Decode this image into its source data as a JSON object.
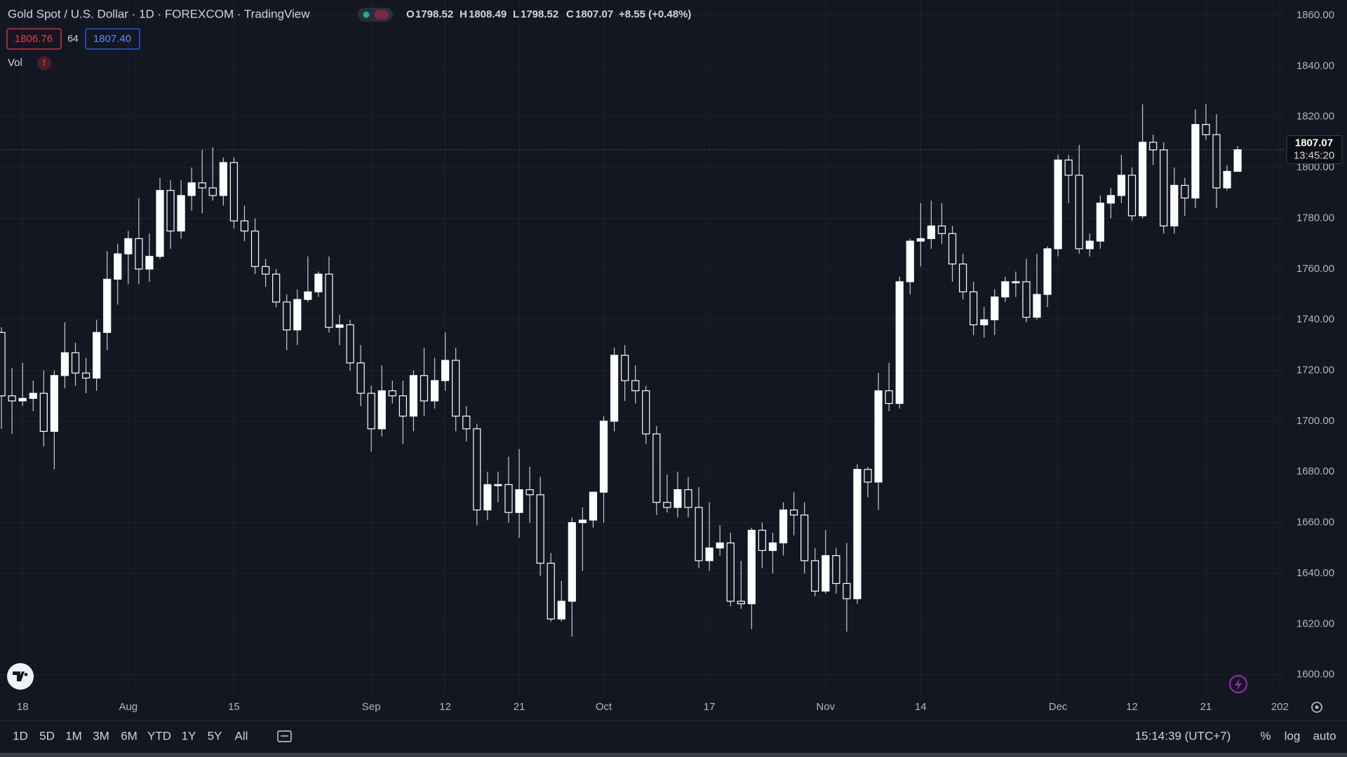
{
  "header": {
    "title": "Gold Spot / U.S. Dollar · 1D · FOREXCOM · TradingView",
    "o_label": "O",
    "h_label": "H",
    "l_label": "L",
    "c_label": "C",
    "change": "+8.55 (+0.48%)",
    "bid": "1806.76",
    "spread": "64",
    "ask": "1807.40",
    "vol_label": "Vol",
    "vol_warning": "!"
  },
  "chart_data": {
    "type": "candlestick",
    "categories": [
      null,
      null,
      "18",
      null,
      null,
      null,
      null,
      null,
      null,
      null,
      null,
      null,
      "Aug",
      null,
      null,
      null,
      null,
      null,
      null,
      null,
      null,
      null,
      "15",
      null,
      null,
      null,
      null,
      null,
      null,
      null,
      null,
      null,
      null,
      null,
      null,
      "Sep",
      null,
      null,
      null,
      null,
      null,
      null,
      "12",
      null,
      null,
      null,
      null,
      null,
      null,
      "21",
      null,
      null,
      null,
      null,
      null,
      null,
      null,
      "Oct",
      null,
      null,
      null,
      null,
      null,
      null,
      null,
      null,
      null,
      "17",
      null,
      null,
      null,
      null,
      null,
      null,
      null,
      null,
      null,
      null,
      "Nov",
      null,
      null,
      null,
      null,
      null,
      null,
      null,
      null,
      "14",
      null,
      null,
      null,
      null,
      null,
      null,
      null,
      null,
      null,
      null,
      null,
      null,
      "Dec",
      null,
      null,
      null,
      null,
      null,
      null,
      "12",
      null,
      null,
      null,
      null,
      null,
      null,
      "21",
      null,
      null,
      null,
      null,
      null,
      null,
      "202"
    ],
    "open": [
      1735,
      1710,
      1708,
      1709,
      1711,
      1696,
      1718,
      1727,
      1719,
      1717,
      1735,
      1756,
      1766,
      1772,
      1760,
      1765,
      1791,
      1775,
      1789,
      1794,
      1792,
      1789,
      1802,
      1779,
      1775,
      1761,
      1758,
      1747,
      1736,
      1748,
      1751,
      1758,
      1737,
      1738,
      1723,
      1711,
      1697,
      1712,
      1710,
      1702,
      1718,
      1708,
      1716,
      1724,
      1702,
      1697,
      1665,
      1675,
      1675,
      1664,
      1673,
      1671,
      1644,
      1622,
      1629,
      1660,
      1661,
      1672,
      1700,
      1726,
      1716,
      1712,
      1695,
      1668,
      1666,
      1673,
      1666,
      1645,
      1650,
      1652,
      1629,
      1628,
      1657,
      1649,
      1652,
      1665,
      1663,
      1645,
      1633,
      1647,
      1636,
      1630,
      1681,
      1676,
      1712,
      1707,
      1755,
      1771,
      1772,
      1777,
      1774,
      1762,
      1751,
      1738,
      1740,
      1749,
      1755,
      1755,
      1741,
      1750,
      1768,
      1803,
      1797,
      1768,
      1771,
      1786,
      1789,
      1797,
      1781,
      1810,
      1807,
      1777,
      1793,
      1788,
      1817,
      1813,
      1792,
      1798.52,
      null,
      null,
      null,
      null
    ],
    "high": [
      1737,
      1721,
      1723,
      1716,
      1720,
      1720,
      1739,
      1731,
      1725,
      1740,
      1767,
      1770,
      1775,
      1788,
      1774,
      1796,
      1795,
      1795,
      1800,
      1807,
      1808,
      1804,
      1804,
      1785,
      1780,
      1764,
      1760,
      1750,
      1752,
      1765,
      1759,
      1765,
      1742,
      1740,
      1730,
      1714,
      1722,
      1716,
      1716,
      1720,
      1729,
      1725,
      1735,
      1729,
      1706,
      1699,
      1680,
      1680,
      1686,
      1689,
      1682,
      1678,
      1648,
      1637,
      1662,
      1666,
      1672,
      1702,
      1729,
      1730,
      1722,
      1714,
      1698,
      1679,
      1680,
      1678,
      1674,
      1668,
      1659,
      1656,
      1645,
      1658,
      1660,
      1656,
      1668,
      1672,
      1668,
      1650,
      1657,
      1650,
      1652,
      1683,
      1682,
      1719,
      1723,
      1757,
      1772,
      1786,
      1787,
      1786,
      1777,
      1766,
      1755,
      1745,
      1752,
      1757,
      1759,
      1764,
      1766,
      1769,
      1805,
      1805,
      1809,
      1774,
      1789,
      1792,
      1805,
      1800,
      1825,
      1813,
      1810,
      1800,
      1796,
      1823,
      1825,
      1821,
      1801,
      1808.49,
      null,
      null,
      null,
      null
    ],
    "low": [
      1697,
      1695,
      1706,
      1704,
      1690,
      1681,
      1713,
      1714,
      1711,
      1712,
      1728,
      1746,
      1754,
      1754,
      1755,
      1764,
      1768,
      1772,
      1783,
      1782,
      1787,
      1785,
      1776,
      1771,
      1758,
      1753,
      1745,
      1728,
      1730,
      1747,
      1749,
      1735,
      1730,
      1720,
      1706,
      1688,
      1694,
      1707,
      1691,
      1696,
      1702,
      1705,
      1712,
      1696,
      1692,
      1659,
      1661,
      1668,
      1660,
      1654,
      1660,
      1639,
      1621,
      1621,
      1615,
      1641,
      1658,
      1660,
      1696,
      1708,
      1707,
      1691,
      1663,
      1664,
      1662,
      1662,
      1642,
      1641,
      1647,
      1627,
      1626,
      1618,
      1642,
      1640,
      1647,
      1655,
      1640,
      1631,
      1632,
      1632,
      1617,
      1628,
      1670,
      1665,
      1704,
      1705,
      1750,
      1761,
      1768,
      1770,
      1755,
      1748,
      1734,
      1733,
      1734,
      1747,
      1749,
      1739,
      1740,
      1745,
      1765,
      1786,
      1766,
      1765,
      1768,
      1780,
      1786,
      1779,
      1780,
      1801,
      1774,
      1774,
      1781,
      1784,
      1811,
      1784,
      1791,
      1798.52,
      null,
      null,
      null,
      null
    ],
    "close": [
      1710,
      1708,
      1709,
      1711,
      1696,
      1718,
      1727,
      1719,
      1717,
      1735,
      1756,
      1766,
      1772,
      1760,
      1765,
      1791,
      1775,
      1789,
      1794,
      1792,
      1789,
      1802,
      1779,
      1775,
      1761,
      1758,
      1747,
      1736,
      1748,
      1751,
      1758,
      1737,
      1738,
      1723,
      1711,
      1697,
      1712,
      1710,
      1702,
      1718,
      1708,
      1716,
      1724,
      1702,
      1697,
      1665,
      1675,
      1675,
      1664,
      1673,
      1671,
      1644,
      1622,
      1629,
      1660,
      1661,
      1672,
      1700,
      1726,
      1716,
      1712,
      1695,
      1668,
      1666,
      1673,
      1666,
      1645,
      1650,
      1652,
      1629,
      1628,
      1657,
      1649,
      1652,
      1665,
      1663,
      1645,
      1633,
      1647,
      1636,
      1630,
      1681,
      1676,
      1712,
      1707,
      1755,
      1771,
      1772,
      1777,
      1774,
      1762,
      1751,
      1738,
      1740,
      1749,
      1755,
      1755,
      1741,
      1750,
      1768,
      1803,
      1797,
      1768,
      1771,
      1786,
      1789,
      1797,
      1781,
      1810,
      1807,
      1777,
      1793,
      1788,
      1817,
      1813,
      1792,
      1798.52,
      1807.07,
      null,
      null,
      null,
      null
    ],
    "color": "#ffffff",
    "wick_color": "#c8cad1",
    "ylim": [
      1591.9,
      1866.1
    ],
    "yticks": [
      {
        "value": 1600,
        "label": "1600.00"
      },
      {
        "value": 1620,
        "label": "1620.00"
      },
      {
        "value": 1640,
        "label": "1640.00"
      },
      {
        "value": 1660,
        "label": "1660.00"
      },
      {
        "value": 1680,
        "label": "1680.00"
      },
      {
        "value": 1700,
        "label": "1700.00"
      },
      {
        "value": 1720,
        "label": "1720.00"
      },
      {
        "value": 1740,
        "label": "1740.00"
      },
      {
        "value": 1760,
        "label": "1760.00"
      },
      {
        "value": 1780,
        "label": "1780.00"
      },
      {
        "value": 1800,
        "label": "1800.00"
      },
      {
        "value": 1820,
        "label": "1820.00"
      },
      {
        "value": 1840,
        "label": "1840.00"
      },
      {
        "value": 1860,
        "label": "1860.00"
      }
    ],
    "grid": true,
    "countdown": "13:45:20"
  },
  "toolbar": {
    "ranges": [
      "1D",
      "5D",
      "1M",
      "3M",
      "6M",
      "YTD",
      "1Y",
      "5Y",
      "All"
    ],
    "clock": "15:14:39 (UTC+7)",
    "options": [
      "%",
      "log",
      "auto"
    ]
  }
}
